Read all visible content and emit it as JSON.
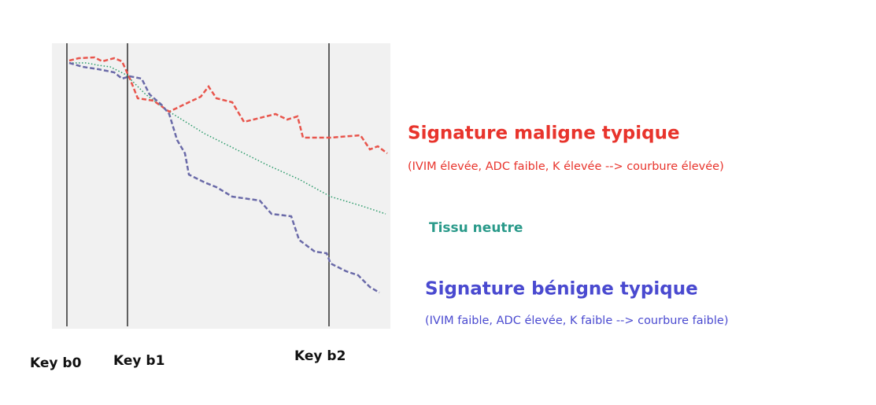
{
  "keys": [
    "Key b0",
    "Key b1",
    "Key b2"
  ],
  "malignant": {
    "title": "Signature maligne typique",
    "subtitle": "(IVIM élevée, ADC faible, K élevée --> courbure élevée)"
  },
  "neutral": {
    "title": "Tissu neutre"
  },
  "benign": {
    "title": "Signature bénigne typique",
    "subtitle": "(IVIM faible, ADC élevée, K faible --> courbure faible)"
  }
}
